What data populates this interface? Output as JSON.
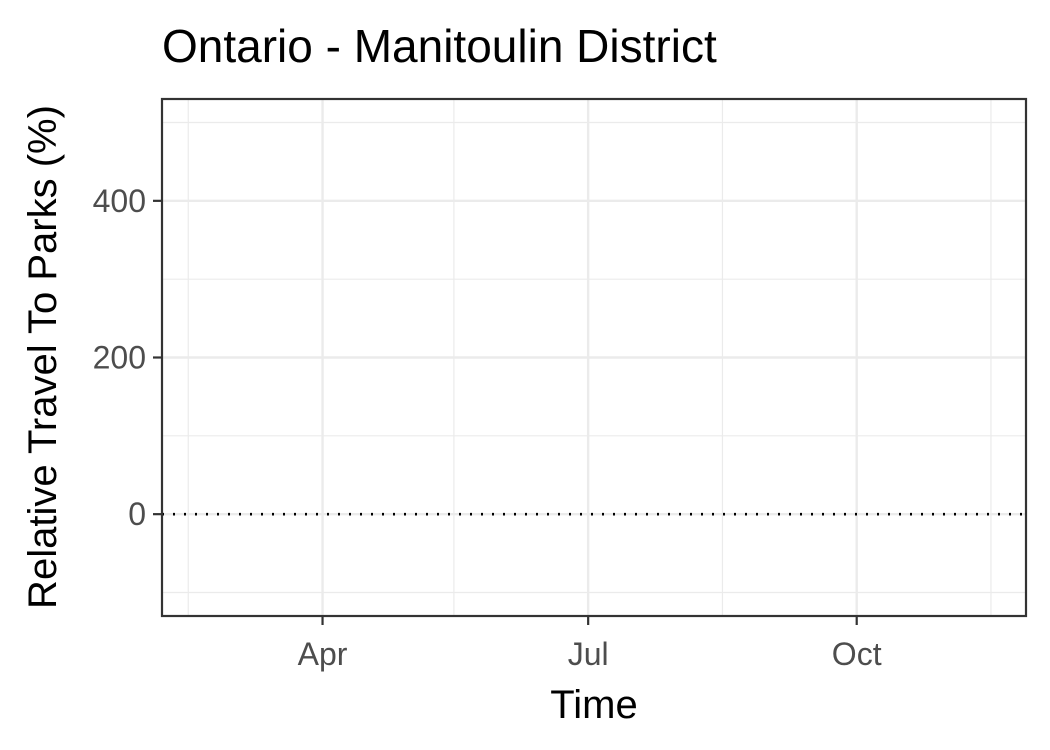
{
  "chart_data": {
    "type": "line",
    "title": "Ontario - Manitoulin District",
    "xlabel": "Time",
    "ylabel": "Relative Travel To Parks (%)",
    "x_type": "date",
    "xlim": [
      "2020-02-06",
      "2020-11-28"
    ],
    "ylim": [
      -130,
      530
    ],
    "x_ticks": [
      {
        "value": "2020-04-01",
        "label": "Apr"
      },
      {
        "value": "2020-07-01",
        "label": "Jul"
      },
      {
        "value": "2020-10-01",
        "label": "Oct"
      }
    ],
    "x_minor_ticks": [
      "2020-02-15",
      "2020-05-16",
      "2020-08-16",
      "2020-11-16"
    ],
    "y_ticks": [
      {
        "value": 0,
        "label": "0"
      },
      {
        "value": 200,
        "label": "200"
      },
      {
        "value": 400,
        "label": "400"
      }
    ],
    "y_minor_ticks": [
      -100,
      100,
      300,
      500
    ],
    "reference_line": {
      "y": 0,
      "style": "dotted",
      "color": "#000000"
    },
    "series": [],
    "grid": true,
    "legend": "none"
  }
}
